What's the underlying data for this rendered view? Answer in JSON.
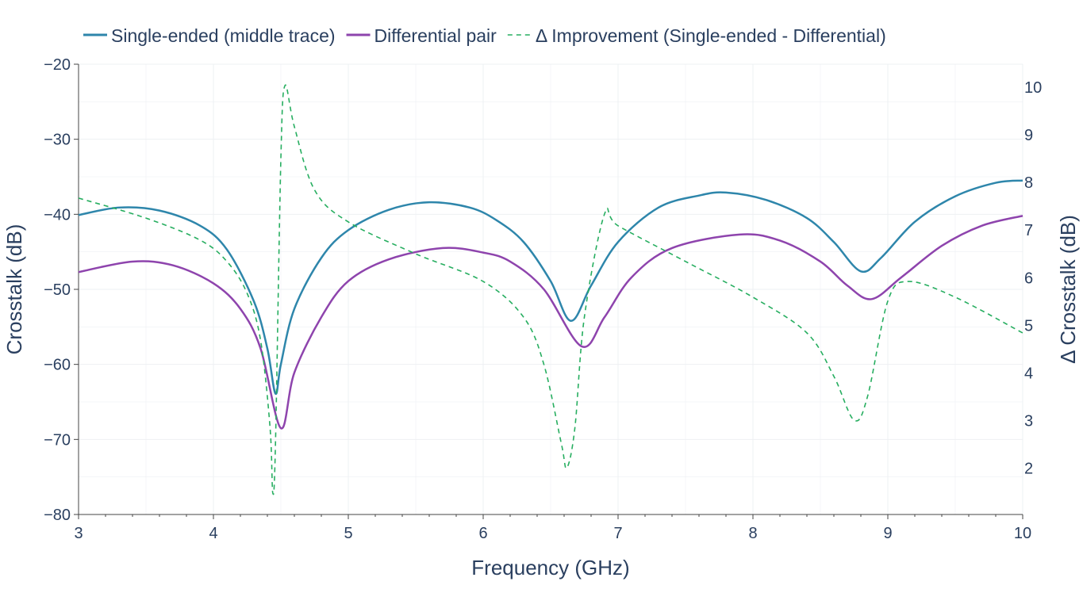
{
  "chart_data": {
    "type": "line",
    "xlabel": "Frequency (GHz)",
    "ylabel": "Crosstalk (dB)",
    "y2label": "Δ Crosstalk (dB)",
    "xlim": [
      3,
      10
    ],
    "ylim": [
      -80,
      -20
    ],
    "y2lim": [
      1.03,
      10.48
    ],
    "xticks": [
      3,
      4,
      5,
      6,
      7,
      8,
      9,
      10
    ],
    "yticks": [
      -20,
      -30,
      -40,
      -50,
      -60,
      -70,
      -80
    ],
    "y2ticks": [
      2,
      3,
      4,
      5,
      6,
      7,
      8,
      9,
      10
    ],
    "grid": true,
    "legend_position": "top",
    "series": [
      {
        "name": "Single-ended (middle trace)",
        "axis": "left",
        "color": "#2e86ab",
        "dash": false,
        "x": [
          3,
          3.3,
          3.6,
          3.9,
          4.1,
          4.3,
          4.4,
          4.46,
          4.5,
          4.6,
          4.8,
          5.0,
          5.3,
          5.6,
          5.9,
          6.1,
          6.3,
          6.5,
          6.65,
          6.8,
          7.0,
          7.3,
          7.6,
          7.8,
          8.1,
          8.4,
          8.6,
          8.8,
          8.95,
          9.2,
          9.5,
          9.8,
          10
        ],
        "y": [
          -40.1,
          -39.1,
          -39.5,
          -41.5,
          -44.7,
          -51.6,
          -57.9,
          -63.9,
          -60,
          -52.6,
          -45.8,
          -42.1,
          -39.4,
          -38.4,
          -39.1,
          -40.8,
          -43.7,
          -48.9,
          -54.2,
          -49.5,
          -43.7,
          -39.1,
          -37.5,
          -37.1,
          -38.1,
          -40.5,
          -43.7,
          -47.6,
          -45.8,
          -41,
          -37.6,
          -35.8,
          -35.5
        ]
      },
      {
        "name": "Differential pair",
        "axis": "left",
        "color": "#8e44ad",
        "dash": false,
        "x": [
          3,
          3.4,
          3.7,
          4.0,
          4.2,
          4.35,
          4.5,
          4.6,
          4.8,
          5.0,
          5.3,
          5.7,
          6.0,
          6.2,
          6.45,
          6.73,
          6.9,
          7.1,
          7.4,
          7.9,
          8.2,
          8.5,
          8.7,
          8.88,
          9.1,
          9.4,
          9.7,
          10
        ],
        "y": [
          -47.7,
          -46.3,
          -46.8,
          -49.2,
          -52.6,
          -57.9,
          -68.5,
          -61.1,
          -53.7,
          -48.9,
          -46,
          -44.5,
          -45.1,
          -46.3,
          -50,
          -57.6,
          -53.7,
          -48.4,
          -44.5,
          -42.7,
          -43.5,
          -46.3,
          -49.5,
          -51.3,
          -48.4,
          -44.2,
          -41.5,
          -40.2
        ]
      },
      {
        "name": "Δ Improvement (Single-ended - Differential)",
        "axis": "right",
        "color": "#27ae60",
        "dash": true,
        "x": [
          3,
          3.5,
          3.9,
          4.1,
          4.25,
          4.35,
          4.42,
          4.44,
          4.46,
          4.5,
          4.53,
          4.6,
          4.75,
          5.0,
          5.5,
          6.0,
          6.3,
          6.45,
          6.58,
          6.62,
          6.68,
          6.75,
          6.9,
          7.0,
          7.5,
          8.0,
          8.4,
          8.6,
          8.75,
          8.85,
          9.0,
          9.15,
          9.5,
          10
        ],
        "y": [
          7.67,
          7.25,
          6.79,
          6.34,
          5.67,
          4.68,
          2.85,
          1.48,
          2.51,
          8.5,
          10.03,
          9.17,
          7.84,
          7.17,
          6.5,
          5.92,
          5.17,
          4.18,
          2.51,
          2.01,
          2.85,
          5.17,
          7.34,
          7.09,
          6.34,
          5.59,
          4.84,
          3.93,
          3.01,
          3.51,
          5.51,
          5.92,
          5.59,
          4.84
        ]
      }
    ]
  }
}
